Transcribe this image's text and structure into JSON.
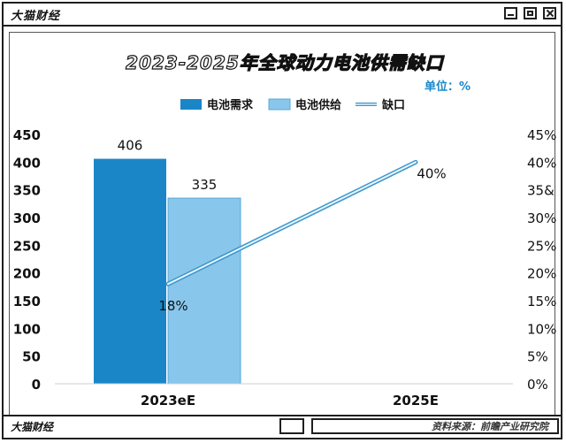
{
  "window": {
    "app_title": "大猫财经",
    "bottom_title": "大猫财经",
    "source": "资料来源：前瞻产业研究院"
  },
  "chart_data": {
    "type": "bar",
    "title": "2023-2025年全球动力电池供需缺口",
    "unit_label": "单位：%",
    "categories": [
      "2023eE",
      "2025E"
    ],
    "series": [
      {
        "name": "电池需求",
        "kind": "bar",
        "axis": "left",
        "values": [
          406,
          null
        ],
        "data_labels": [
          "406",
          ""
        ],
        "color": "#1a86c8"
      },
      {
        "name": "电池供给",
        "kind": "bar",
        "axis": "left",
        "values": [
          335,
          null
        ],
        "data_labels": [
          "335",
          ""
        ],
        "color": "#88c6ec"
      },
      {
        "name": "缺口",
        "kind": "line",
        "axis": "right",
        "values": [
          18,
          40
        ],
        "data_labels": [
          "18%",
          "40%"
        ],
        "color": "#6ec0e6"
      }
    ],
    "left_axis": {
      "ylim": [
        0,
        450
      ],
      "ticks": [
        "0",
        "50",
        "100",
        "150",
        "200",
        "250",
        "300",
        "350",
        "400",
        "450"
      ]
    },
    "right_axis": {
      "ylim": [
        0,
        45
      ],
      "ticks": [
        "0%",
        "5%",
        "10%",
        "15%",
        "20%",
        "25%",
        "30%",
        "35&",
        "40%",
        "45%"
      ]
    },
    "legend_position": "top",
    "grid": false
  }
}
